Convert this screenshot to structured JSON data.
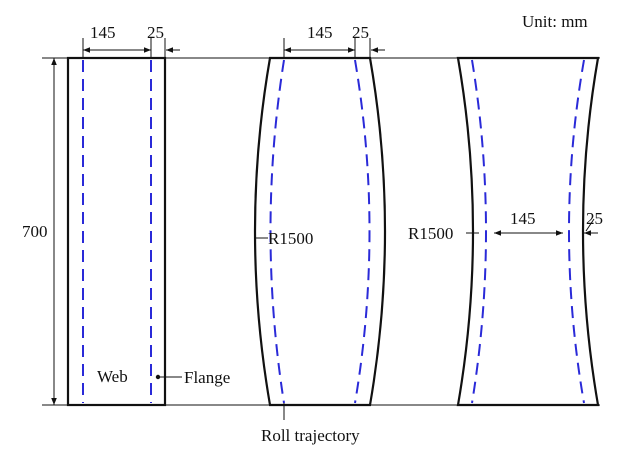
{
  "unit_label": "Unit: mm",
  "labels": {
    "height": "700",
    "web_width": "145",
    "flange_width": "25",
    "radius": "R1500",
    "web": "Web",
    "flange": "Flange",
    "roll_trajectory": "Roll trajectory"
  },
  "colors": {
    "outline": "#111111",
    "roll_trajectory": "#2a2ad8"
  }
}
